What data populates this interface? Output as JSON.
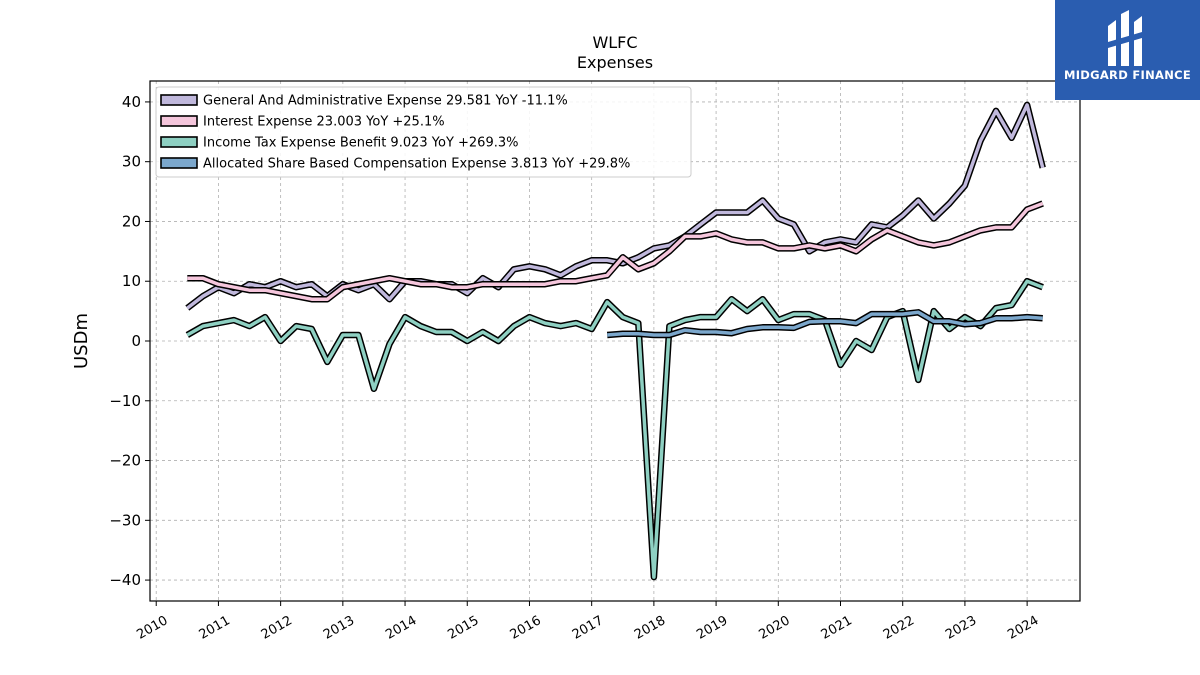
{
  "watermark": {
    "brand": "MIDGARD FINANCE",
    "bg_color": "#2a5db0"
  },
  "chart_data": {
    "type": "line",
    "title": "WLFC",
    "subtitle": "Expenses",
    "xlabel": "",
    "ylabel": "USDm",
    "xlim": [
      2009.9,
      2024.85
    ],
    "ylim": [
      -43.5,
      43.5
    ],
    "x_ticks": [
      2010,
      2011,
      2012,
      2013,
      2014,
      2015,
      2016,
      2017,
      2018,
      2019,
      2020,
      2021,
      2022,
      2023,
      2024
    ],
    "y_ticks": [
      -40,
      -30,
      -20,
      -10,
      0,
      10,
      20,
      30,
      40
    ],
    "grid": true,
    "legend_position": "top-left",
    "series": [
      {
        "name": "General And Administrative Expense  29.581 YoY -11.1%",
        "color": "#c0b8dc",
        "x": [
          2010.5,
          2010.75,
          2011.0,
          2011.25,
          2011.5,
          2011.75,
          2012.0,
          2012.25,
          2012.5,
          2012.75,
          2013.0,
          2013.25,
          2013.5,
          2013.75,
          2014.0,
          2014.25,
          2014.5,
          2014.75,
          2015.0,
          2015.25,
          2015.5,
          2015.75,
          2016.0,
          2016.25,
          2016.5,
          2016.75,
          2017.0,
          2017.25,
          2017.5,
          2017.75,
          2018.0,
          2018.25,
          2018.5,
          2018.75,
          2019.0,
          2019.25,
          2019.5,
          2019.75,
          2020.0,
          2020.25,
          2020.5,
          2020.75,
          2021.0,
          2021.25,
          2021.5,
          2021.75,
          2022.0,
          2022.25,
          2022.5,
          2022.75,
          2023.0,
          2023.25,
          2023.5,
          2023.75,
          2024.0,
          2024.25
        ],
        "values": [
          5.5,
          7.5,
          9.0,
          8.0,
          9.5,
          9.0,
          10.0,
          9.0,
          9.5,
          7.5,
          9.5,
          8.5,
          9.5,
          7.0,
          10.0,
          10.0,
          9.5,
          9.5,
          8.0,
          10.5,
          9.0,
          12.0,
          12.5,
          12.0,
          11.0,
          12.5,
          13.5,
          13.5,
          13.0,
          14.0,
          15.5,
          16.0,
          17.5,
          19.5,
          21.5,
          21.5,
          21.5,
          23.5,
          20.5,
          19.5,
          15.0,
          16.5,
          17.0,
          16.5,
          19.5,
          19.0,
          21.0,
          23.5,
          20.5,
          23.0,
          26.0,
          33.5,
          38.5,
          34.0,
          39.5,
          29.0
        ]
      },
      {
        "name": "Interest Expense  23.003 YoY +25.1%",
        "color": "#f5c6dc",
        "x": [
          2010.5,
          2010.75,
          2011.0,
          2011.25,
          2011.5,
          2011.75,
          2012.0,
          2012.25,
          2012.5,
          2012.75,
          2013.0,
          2013.25,
          2013.5,
          2013.75,
          2014.0,
          2014.25,
          2014.5,
          2014.75,
          2015.0,
          2015.25,
          2015.5,
          2015.75,
          2016.0,
          2016.25,
          2016.5,
          2016.75,
          2017.0,
          2017.25,
          2017.5,
          2017.75,
          2018.0,
          2018.25,
          2018.5,
          2018.75,
          2019.0,
          2019.25,
          2019.5,
          2019.75,
          2020.0,
          2020.25,
          2020.5,
          2020.75,
          2021.0,
          2021.25,
          2021.5,
          2021.75,
          2022.0,
          2022.25,
          2022.5,
          2022.75,
          2023.0,
          2023.25,
          2023.5,
          2023.75,
          2024.0,
          2024.25
        ],
        "values": [
          10.5,
          10.5,
          9.5,
          9.0,
          8.5,
          8.5,
          8.0,
          7.5,
          7.0,
          7.0,
          9.0,
          9.5,
          10.0,
          10.5,
          10.0,
          9.5,
          9.5,
          9.0,
          9.0,
          9.5,
          9.5,
          9.5,
          9.5,
          9.5,
          10.0,
          10.0,
          10.5,
          11.0,
          14.0,
          12.0,
          13.0,
          15.0,
          17.5,
          17.5,
          18.0,
          17.0,
          16.5,
          16.5,
          15.5,
          15.5,
          16.0,
          15.5,
          16.0,
          15.0,
          17.0,
          18.5,
          17.5,
          16.5,
          16.0,
          16.5,
          17.5,
          18.5,
          19.0,
          19.0,
          22.0,
          23.0
        ]
      },
      {
        "name": "Income Tax Expense Benefit  9.023 YoY +269.3%",
        "color": "#8ed0c2",
        "x": [
          2010.5,
          2010.75,
          2011.0,
          2011.25,
          2011.5,
          2011.75,
          2012.0,
          2012.25,
          2012.5,
          2012.75,
          2013.0,
          2013.25,
          2013.5,
          2013.75,
          2014.0,
          2014.25,
          2014.5,
          2014.75,
          2015.0,
          2015.25,
          2015.5,
          2015.75,
          2016.0,
          2016.25,
          2016.5,
          2016.75,
          2017.0,
          2017.25,
          2017.5,
          2017.75,
          2018.0,
          2018.25,
          2018.5,
          2018.75,
          2019.0,
          2019.25,
          2019.5,
          2019.75,
          2020.0,
          2020.25,
          2020.5,
          2020.75,
          2021.0,
          2021.25,
          2021.5,
          2021.75,
          2022.0,
          2022.25,
          2022.5,
          2022.75,
          2023.0,
          2023.25,
          2023.5,
          2023.75,
          2024.0,
          2024.25
        ],
        "values": [
          1.0,
          2.5,
          3.0,
          3.5,
          2.5,
          4.0,
          0.0,
          2.5,
          2.0,
          -3.5,
          1.0,
          1.0,
          -8.0,
          -0.5,
          4.0,
          2.5,
          1.5,
          1.5,
          0.0,
          1.5,
          0.0,
          2.5,
          4.0,
          3.0,
          2.5,
          3.0,
          2.0,
          6.5,
          4.0,
          3.0,
          -39.5,
          2.5,
          3.5,
          4.0,
          4.0,
          7.0,
          5.0,
          7.0,
          3.5,
          4.5,
          4.5,
          3.5,
          -4.0,
          0.0,
          -1.5,
          4.0,
          5.0,
          -6.5,
          5.0,
          2.0,
          4.0,
          2.5,
          5.5,
          6.0,
          10.0,
          9.0
        ]
      },
      {
        "name": "Allocated Share Based Compensation Expense  3.813 YoY +29.8%",
        "color": "#7ba7cc",
        "x": [
          2017.25,
          2017.5,
          2017.75,
          2018.0,
          2018.25,
          2018.5,
          2018.75,
          2019.0,
          2019.25,
          2019.5,
          2019.75,
          2020.0,
          2020.25,
          2020.5,
          2020.75,
          2021.0,
          2021.25,
          2021.5,
          2021.75,
          2022.0,
          2022.25,
          2022.5,
          2022.75,
          2023.0,
          2023.25,
          2023.5,
          2023.75,
          2024.0,
          2024.25
        ],
        "values": [
          1.0,
          1.2,
          1.2,
          1.0,
          1.0,
          1.8,
          1.5,
          1.5,
          1.3,
          2.0,
          2.3,
          2.3,
          2.2,
          3.2,
          3.3,
          3.3,
          3.0,
          4.5,
          4.5,
          4.5,
          4.8,
          3.3,
          3.3,
          2.8,
          3.0,
          3.8,
          3.8,
          4.0,
          3.8
        ]
      }
    ]
  }
}
